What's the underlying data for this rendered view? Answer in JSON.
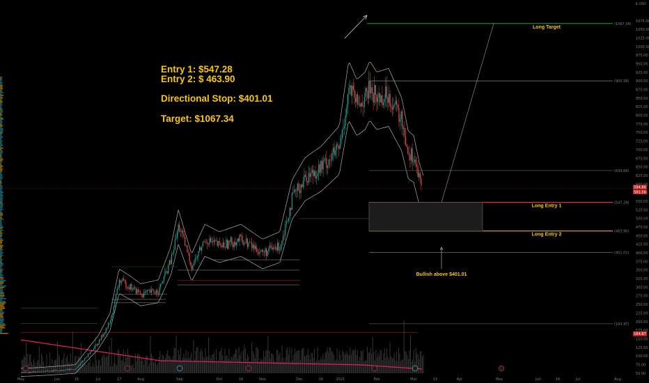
{
  "notes": {
    "entry1": "Entry 1: $547.28",
    "entry2": "Entry 2: $ 463.90",
    "stop": "Directional Stop: $401.01",
    "target": "Target: $1067.34"
  },
  "colors": {
    "background": "#000000",
    "text_accent": "#f5c518",
    "up_candle": "#26a69a",
    "down_candle": "#ef5350",
    "target_line": "#2e9e2e",
    "entry1_line": "#e53935",
    "entry2_line": "#f5c518",
    "stop_line": "#8a8a8a",
    "volume_ma": "#e91e63",
    "volume": "#3a3a3a",
    "price_tag": "#c62828"
  },
  "chart_data": {
    "type": "candlestick",
    "y_axis": {
      "currency_label": "$ USD",
      "ylim": [
        42,
        1090
      ],
      "ticks": [
        50,
        75,
        100,
        125,
        150,
        175,
        200,
        225,
        250,
        275,
        300,
        325,
        350,
        375,
        400,
        425,
        450,
        475,
        500,
        525,
        550,
        575,
        600,
        625,
        650,
        675,
        700,
        725,
        750,
        775,
        800,
        825,
        850,
        875,
        900,
        925,
        950,
        975,
        1000,
        1025,
        1050,
        1075
      ]
    },
    "x_axis": {
      "ticks": [
        "May",
        "Jun",
        "16",
        "Jul",
        "17",
        "Aug",
        "Sep",
        "Oct",
        "16",
        "Nov",
        "Dec",
        "16",
        "2021",
        "Feb",
        "Mar",
        "15",
        "Apr",
        "May",
        "Jun",
        "16",
        "Jul",
        "Aug"
      ]
    },
    "levels": [
      {
        "name": "Long Target",
        "price": 1067.34,
        "tag": "1067.34",
        "color": "#2e9e2e",
        "label_color": "#f5c518"
      },
      {
        "name": "",
        "price": 900.58,
        "tag": "900.58",
        "color": "#8a8a8a",
        "label_color": "#8a8a8a"
      },
      {
        "name": "",
        "price": 639.66,
        "tag": "639.66",
        "color": "#555555",
        "label_color": "#8a8a8a"
      },
      {
        "name": "Long Entry 1",
        "price": 547.28,
        "tag": "547.28",
        "color": "#e53935",
        "label_color": "#f5c518"
      },
      {
        "name": "Long Entry 2",
        "price": 463.9,
        "tag": "463.90",
        "color": "#f5c518",
        "label_color": "#f5c518"
      },
      {
        "name": "",
        "price": 401.01,
        "tag": "401.01",
        "color": "#8a8a8a",
        "label_color": "#8a8a8a"
      },
      {
        "name": "",
        "price": 193.97,
        "tag": "193.97",
        "color": "#555555",
        "label_color": "#8a8a8a"
      }
    ],
    "current_price": {
      "tags": [
        "594.86",
        "581.56"
      ],
      "value": 588.0
    },
    "lower_tag": "164.87",
    "annotation": "Bullish above $401.01",
    "close_series": [
      {
        "date": "2020-05",
        "close": 52
      },
      {
        "date": "2020-05-15",
        "close": 54
      },
      {
        "date": "2020-06-01",
        "close": 58
      },
      {
        "date": "2020-06-15",
        "close": 62
      },
      {
        "date": "2020-07-01",
        "close": 140
      },
      {
        "date": "2020-07-10",
        "close": 200
      },
      {
        "date": "2020-07-17",
        "close": 320
      },
      {
        "date": "2020-07-25",
        "close": 300
      },
      {
        "date": "2020-08-01",
        "close": 280
      },
      {
        "date": "2020-08-15",
        "close": 290
      },
      {
        "date": "2020-08-25",
        "close": 380
      },
      {
        "date": "2020-08-31",
        "close": 480
      },
      {
        "date": "2020-09-05",
        "close": 420
      },
      {
        "date": "2020-09-10",
        "close": 360
      },
      {
        "date": "2020-09-20",
        "close": 440
      },
      {
        "date": "2020-10-01",
        "close": 420
      },
      {
        "date": "2020-10-16",
        "close": 440
      },
      {
        "date": "2020-11-01",
        "close": 400
      },
      {
        "date": "2020-11-15",
        "close": 420
      },
      {
        "date": "2020-11-25",
        "close": 560
      },
      {
        "date": "2020-12-05",
        "close": 620
      },
      {
        "date": "2020-12-16",
        "close": 650
      },
      {
        "date": "2020-12-31",
        "close": 705
      },
      {
        "date": "2021-01-08",
        "close": 880
      },
      {
        "date": "2021-01-15",
        "close": 830
      },
      {
        "date": "2021-01-22",
        "close": 850
      },
      {
        "date": "2021-01-26",
        "close": 880
      },
      {
        "date": "2021-02-01",
        "close": 850
      },
      {
        "date": "2021-02-10",
        "close": 860
      },
      {
        "date": "2021-02-20",
        "close": 780
      },
      {
        "date": "2021-02-25",
        "close": 690
      },
      {
        "date": "2021-03-01",
        "close": 680
      },
      {
        "date": "2021-03-05",
        "close": 600
      },
      {
        "date": "2021-03-08",
        "close": 563
      }
    ],
    "grid": false,
    "legend": "none"
  }
}
